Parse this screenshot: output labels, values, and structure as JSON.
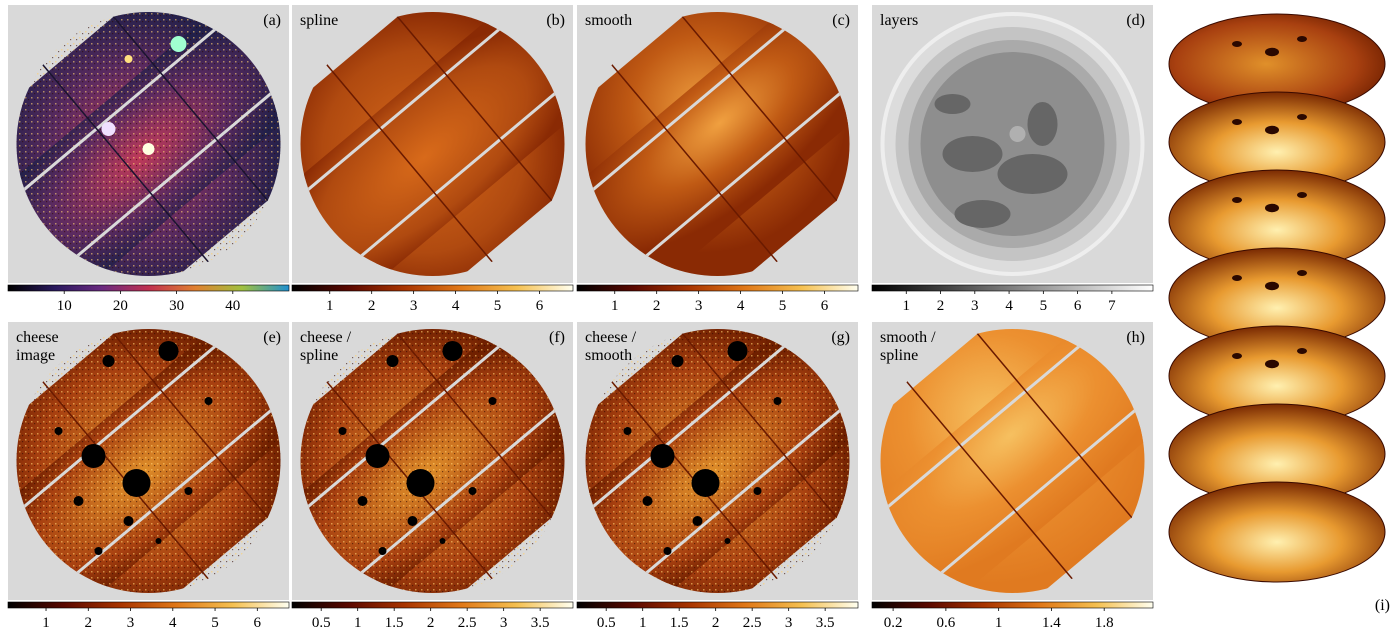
{
  "panels": [
    {
      "label": "(a)",
      "title": [],
      "colormap": [
        "#000000",
        "#2a1a5e",
        "#6a2a80",
        "#c03050",
        "#e08030",
        "#a0c040",
        "#2090d0"
      ],
      "range": [
        0,
        50
      ],
      "ticks": [
        10,
        20,
        30,
        40
      ]
    },
    {
      "label": "(b)",
      "title": [
        "spline"
      ],
      "colormap": [
        "#000000",
        "#5a0800",
        "#a83400",
        "#e07818",
        "#f5c050",
        "#fffff0"
      ],
      "range": [
        0.1,
        6.8
      ],
      "ticks": [
        1,
        2,
        3,
        4,
        5,
        6
      ]
    },
    {
      "label": "(c)",
      "title": [
        "smooth"
      ],
      "colormap": [
        "#000000",
        "#5a0800",
        "#a83400",
        "#e07818",
        "#f5c050",
        "#fffff0"
      ],
      "range": [
        0.1,
        6.8
      ],
      "ticks": [
        1,
        2,
        3,
        4,
        5,
        6
      ]
    },
    {
      "label": "(d)",
      "title": [
        "layers"
      ],
      "colormap": [
        "#000000",
        "#ffffff"
      ],
      "range": [
        0,
        8.2
      ],
      "ticks": [
        1,
        2,
        3,
        4,
        5,
        6,
        7
      ]
    },
    {
      "label": "(e)",
      "title": [
        "cheese",
        "image"
      ],
      "colormap": [
        "#000000",
        "#5a0800",
        "#a83400",
        "#e07818",
        "#f5c050",
        "#fffff0"
      ],
      "range": [
        0.1,
        6.75
      ],
      "ticks": [
        1,
        2,
        3,
        4,
        5,
        6
      ]
    },
    {
      "label": "(f)",
      "title": [
        "cheese /",
        "spline"
      ],
      "colormap": [
        "#000000",
        "#5a0800",
        "#a83400",
        "#e07818",
        "#f5c050",
        "#fffff0"
      ],
      "range": [
        0.1,
        3.95
      ],
      "ticks": [
        0.5,
        1,
        1.5,
        2,
        2.5,
        3,
        3.5
      ]
    },
    {
      "label": "(g)",
      "title": [
        "cheese /",
        "smooth"
      ],
      "colormap": [
        "#000000",
        "#5a0800",
        "#a83400",
        "#e07818",
        "#f5c050",
        "#fffff0"
      ],
      "range": [
        0.1,
        3.95
      ],
      "ticks": [
        0.5,
        1,
        1.5,
        2,
        2.5,
        3,
        3.5
      ]
    },
    {
      "label": "(h)",
      "title": [
        "smooth /",
        "spline"
      ],
      "colormap": [
        "#000000",
        "#5a0800",
        "#a83400",
        "#e07818",
        "#f5c050",
        "#fffff0"
      ],
      "range": [
        0.04,
        2.17
      ],
      "ticks": [
        0.2,
        0.6,
        1,
        1.4,
        1.8
      ]
    }
  ],
  "stack_label": "(i)"
}
